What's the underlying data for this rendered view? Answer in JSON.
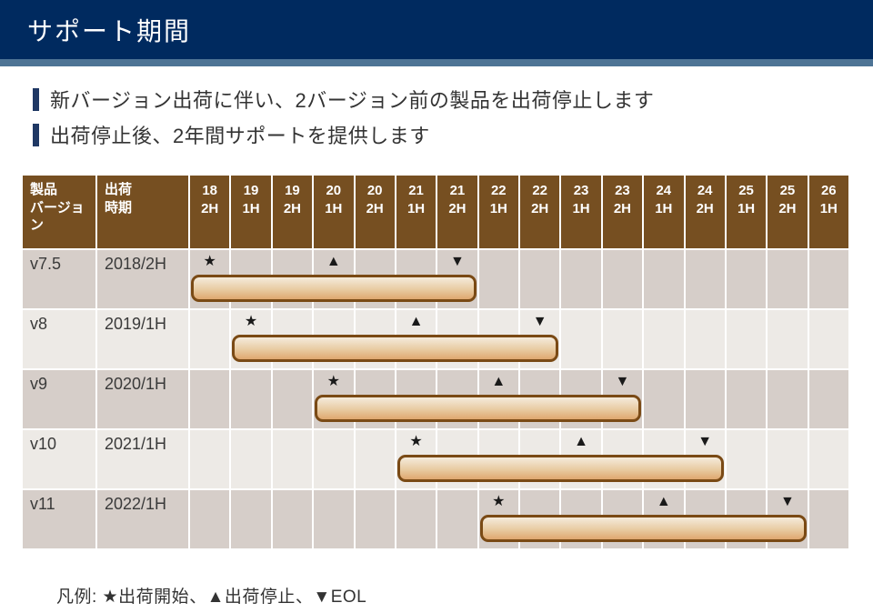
{
  "page": {
    "title": "サポート期間"
  },
  "bullets": [
    "新バージョン出荷に伴い、2バージョン前の製品を出荷停止します",
    "出荷停止後、2年間サポートを提供します"
  ],
  "markers": {
    "start": "★",
    "stop": "▲",
    "eol": "▼"
  },
  "legend": {
    "text": "凡例: ★出荷開始、▲出荷停止、▼EOL"
  },
  "table": {
    "header": {
      "version_label": "製品\nバージョン",
      "ship_label": "出荷\n時期"
    },
    "periods": [
      "18\n2H",
      "19\n1H",
      "19\n2H",
      "20\n1H",
      "20\n2H",
      "21\n1H",
      "21\n2H",
      "22\n1H",
      "22\n2H",
      "23\n1H",
      "23\n2H",
      "24\n1H",
      "24\n2H",
      "25\n1H",
      "25\n2H",
      "26\n1H"
    ],
    "rows": [
      {
        "version": "v7.5",
        "ship": "2018/2H",
        "start": 0,
        "stop": 3,
        "eol": 6
      },
      {
        "version": "v8",
        "ship": "2019/1H",
        "start": 1,
        "stop": 5,
        "eol": 8
      },
      {
        "version": "v9",
        "ship": "2020/1H",
        "start": 3,
        "stop": 7,
        "eol": 10
      },
      {
        "version": "v10",
        "ship": "2021/1H",
        "start": 5,
        "stop": 9,
        "eol": 12
      },
      {
        "version": "v11",
        "ship": "2022/1H",
        "start": 7,
        "stop": 11,
        "eol": 14
      }
    ]
  },
  "chart_data": {
    "type": "table",
    "subtype": "gantt",
    "title": "サポート期間",
    "columns": [
      "製品バージョン",
      "出荷時期",
      "18 2H",
      "19 1H",
      "19 2H",
      "20 1H",
      "20 2H",
      "21 1H",
      "21 2H",
      "22 1H",
      "22 2H",
      "23 1H",
      "23 2H",
      "24 1H",
      "24 2H",
      "25 1H",
      "25 2H",
      "26 1H"
    ],
    "legend": "凡例: ★出荷開始、▲出荷停止、▼EOL",
    "rows": [
      {
        "version": "v7.5",
        "ship_date": "2018/2H",
        "ship_start": "18 2H",
        "ship_stop": "20 1H",
        "eol": "21 2H",
        "bar_span": [
          "18 2H",
          "21 2H"
        ]
      },
      {
        "version": "v8",
        "ship_date": "2019/1H",
        "ship_start": "19 1H",
        "ship_stop": "21 1H",
        "eol": "22 2H",
        "bar_span": [
          "19 1H",
          "22 2H"
        ]
      },
      {
        "version": "v9",
        "ship_date": "2020/1H",
        "ship_start": "20 1H",
        "ship_stop": "22 1H",
        "eol": "23 2H",
        "bar_span": [
          "20 1H",
          "23 2H"
        ]
      },
      {
        "version": "v10",
        "ship_date": "2021/1H",
        "ship_start": "21 1H",
        "ship_stop": "23 1H",
        "eol": "24 2H",
        "bar_span": [
          "21 1H",
          "24 2H"
        ]
      },
      {
        "version": "v11",
        "ship_date": "2022/1H",
        "ship_start": "22 1H",
        "ship_stop": "24 1H",
        "eol": "25 2H",
        "bar_span": [
          "22 1H",
          "25 2H"
        ]
      }
    ]
  },
  "colors": {
    "navy": "#002a5f",
    "strip": "#4e7495",
    "accent": "#1f3864",
    "brown": "#764f21",
    "rowDark": "#d6cec9",
    "rowLight": "#edeae6",
    "barBorder": "#7a4a15",
    "barTop": "#f5ebdc",
    "barBottom": "#dfa76f",
    "text": "#333333"
  }
}
